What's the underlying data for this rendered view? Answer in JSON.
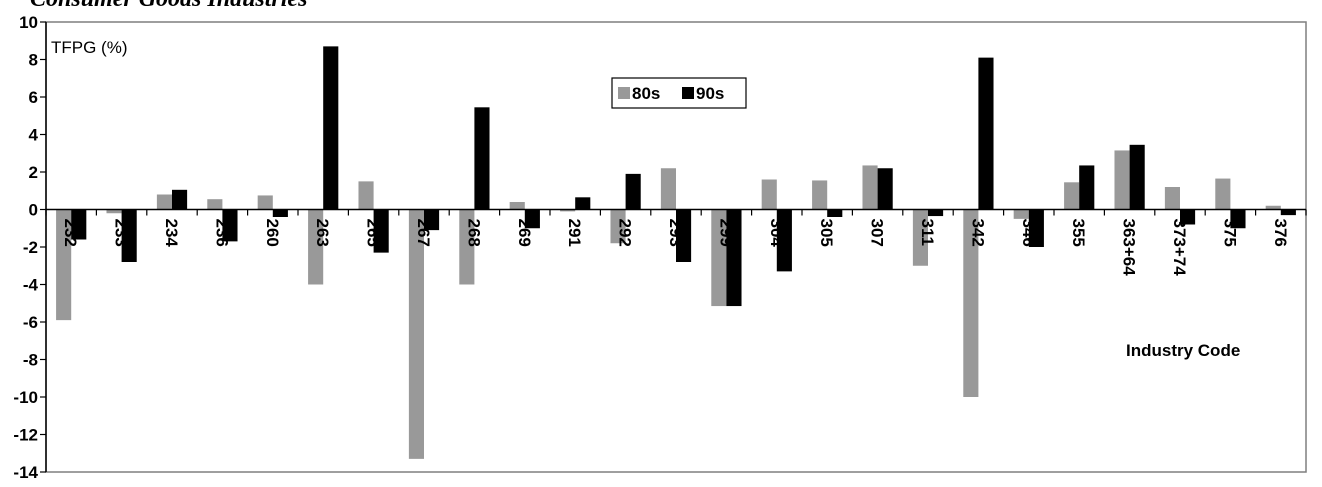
{
  "chart_data": {
    "type": "bar",
    "title": "Consumer Goods Industries",
    "ylabel": "TFPG (%)",
    "xlabel": "Industry Code",
    "ylim": [
      -14,
      10
    ],
    "yticks": [
      10,
      8,
      6,
      4,
      2,
      0,
      -2,
      -4,
      -6,
      -8,
      -10,
      -12,
      -14
    ],
    "grid": false,
    "legend_position": "top-center",
    "categories": [
      "232",
      "233",
      "234",
      "236",
      "260",
      "263",
      "265",
      "267",
      "268",
      "269",
      "291",
      "292",
      "293",
      "299",
      "304",
      "305",
      "307",
      "311",
      "342",
      "346",
      "355",
      "363+64",
      "373+74",
      "375",
      "376"
    ],
    "series": [
      {
        "name": "80s",
        "color": "#999999",
        "values": [
          -5.9,
          -0.2,
          0.8,
          0.55,
          0.75,
          -4.0,
          1.5,
          -13.3,
          -4.0,
          0.4,
          -0.1,
          -1.8,
          2.2,
          -5.15,
          1.6,
          1.55,
          2.35,
          -3.0,
          -10.0,
          -0.5,
          1.45,
          3.15,
          1.2,
          1.65,
          0.2
        ]
      },
      {
        "name": "90s",
        "color": "#000000",
        "values": [
          -1.6,
          -2.8,
          1.05,
          -1.7,
          -0.4,
          8.7,
          -2.3,
          -1.1,
          5.45,
          -1.0,
          0.65,
          1.9,
          -2.8,
          -5.15,
          -3.3,
          -0.4,
          2.2,
          -0.35,
          8.1,
          -2.0,
          2.35,
          3.45,
          -0.8,
          -1.0,
          -0.3
        ]
      }
    ]
  }
}
